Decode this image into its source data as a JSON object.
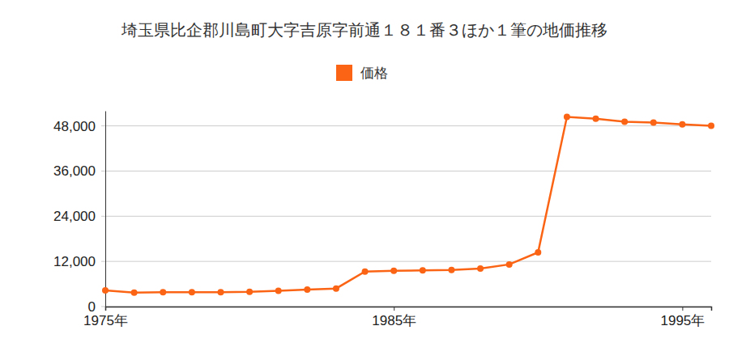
{
  "chart_data": {
    "type": "line",
    "title": "埼玉県比企郡川島町大字吉原字前通１８１番３ほか１筆の地価推移",
    "x": [
      1975,
      1976,
      1977,
      1978,
      1979,
      1980,
      1981,
      1982,
      1983,
      1984,
      1985,
      1986,
      1987,
      1988,
      1989,
      1990,
      1991,
      1992,
      1993,
      1994,
      1995,
      1996
    ],
    "series": [
      {
        "name": "価格",
        "color": "#fa6414",
        "marker": "circle",
        "values": [
          4300,
          3700,
          3800,
          3800,
          3800,
          3900,
          4200,
          4500,
          4800,
          9300,
          9500,
          9600,
          9700,
          10100,
          11200,
          14400,
          50400,
          49900,
          49100,
          48900,
          48400,
          48000
        ]
      }
    ],
    "xlim": [
      1975,
      1996
    ],
    "xticks": [
      {
        "value": 1975,
        "label": "1975年"
      },
      {
        "value": 1985,
        "label": "1985年"
      },
      {
        "value": 1995,
        "label": "1995年"
      }
    ],
    "ylim": [
      0,
      52000
    ],
    "yticks": [
      0,
      {
        "value": 12000,
        "label": "12,000"
      },
      {
        "value": 24000,
        "label": "24,000"
      },
      {
        "value": 36000,
        "label": "36,000"
      },
      {
        "value": 48000,
        "label": "48,000"
      }
    ],
    "grid": true,
    "legend": "top"
  }
}
